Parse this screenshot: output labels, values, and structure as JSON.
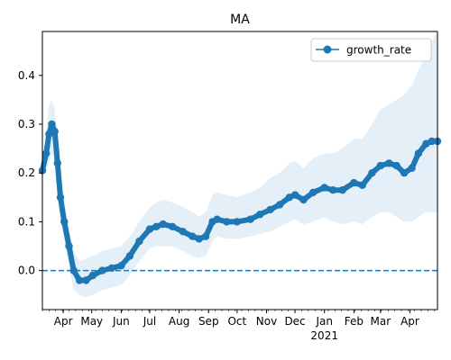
{
  "chart_data": {
    "type": "line",
    "title": "MA",
    "xlabel": "",
    "ylabel": "",
    "x_start": "2020-03-10",
    "x_end": "2021-04-30",
    "ylim": [
      -0.08,
      0.49
    ],
    "yticks": [
      0.0,
      0.1,
      0.2,
      0.3,
      0.4
    ],
    "ytick_labels": [
      "0.0",
      "0.1",
      "0.2",
      "0.3",
      "0.4"
    ],
    "xticks": [
      {
        "date": "2020-04-01",
        "label": "Apr"
      },
      {
        "date": "2020-05-01",
        "label": "May"
      },
      {
        "date": "2020-06-01",
        "label": "Jun"
      },
      {
        "date": "2020-07-01",
        "label": "Jul"
      },
      {
        "date": "2020-08-01",
        "label": "Aug"
      },
      {
        "date": "2020-09-01",
        "label": "Sep"
      },
      {
        "date": "2020-10-01",
        "label": "Oct"
      },
      {
        "date": "2020-11-01",
        "label": "Nov"
      },
      {
        "date": "2020-12-01",
        "label": "Dec"
      },
      {
        "date": "2021-01-01",
        "label": "Jan"
      },
      {
        "date": "2021-02-01",
        "label": "Feb"
      },
      {
        "date": "2021-03-01",
        "label": "Mar"
      },
      {
        "date": "2021-04-01",
        "label": "Apr"
      }
    ],
    "year_label": "2021",
    "hline": {
      "y": 0.0,
      "style": "dashed",
      "color": "#1f77b4"
    },
    "legend": {
      "position": "top-right",
      "entries": [
        "growth_rate"
      ]
    },
    "grid": false,
    "series": [
      {
        "name": "growth_rate",
        "color": "#1f77b4",
        "marker": "circle",
        "band_color": "#c6dbef",
        "points": [
          [
            "2020-03-10",
            0.205,
            0.2,
            0.21
          ],
          [
            "2020-03-14",
            0.24,
            0.21,
            0.29
          ],
          [
            "2020-03-17",
            0.28,
            0.22,
            0.34
          ],
          [
            "2020-03-20",
            0.3,
            0.24,
            0.35
          ],
          [
            "2020-03-23",
            0.285,
            0.22,
            0.33
          ],
          [
            "2020-03-26",
            0.22,
            0.16,
            0.27
          ],
          [
            "2020-03-29",
            0.15,
            0.1,
            0.2
          ],
          [
            "2020-04-02",
            0.1,
            0.06,
            0.14
          ],
          [
            "2020-04-07",
            0.05,
            0.01,
            0.09
          ],
          [
            "2020-04-12",
            0.0,
            -0.04,
            0.04
          ],
          [
            "2020-04-18",
            -0.02,
            -0.05,
            0.02
          ],
          [
            "2020-04-25",
            -0.02,
            -0.055,
            0.025
          ],
          [
            "2020-05-02",
            -0.01,
            -0.05,
            0.03
          ],
          [
            "2020-05-12",
            0.0,
            -0.04,
            0.04
          ],
          [
            "2020-05-22",
            0.005,
            -0.035,
            0.045
          ],
          [
            "2020-06-01",
            0.01,
            -0.03,
            0.05
          ],
          [
            "2020-06-10",
            0.03,
            -0.01,
            0.07
          ],
          [
            "2020-06-20",
            0.06,
            0.02,
            0.1
          ],
          [
            "2020-07-01",
            0.085,
            0.045,
            0.13
          ],
          [
            "2020-07-08",
            0.09,
            0.05,
            0.14
          ],
          [
            "2020-07-15",
            0.095,
            0.05,
            0.145
          ],
          [
            "2020-07-25",
            0.09,
            0.05,
            0.14
          ],
          [
            "2020-08-05",
            0.08,
            0.04,
            0.13
          ],
          [
            "2020-08-15",
            0.07,
            0.03,
            0.12
          ],
          [
            "2020-08-22",
            0.065,
            0.025,
            0.11
          ],
          [
            "2020-08-29",
            0.07,
            0.03,
            0.12
          ],
          [
            "2020-09-05",
            0.1,
            0.06,
            0.155
          ],
          [
            "2020-09-10",
            0.105,
            0.07,
            0.16
          ],
          [
            "2020-09-20",
            0.1,
            0.065,
            0.155
          ],
          [
            "2020-10-01",
            0.1,
            0.065,
            0.15
          ],
          [
            "2020-10-15",
            0.105,
            0.07,
            0.16
          ],
          [
            "2020-10-25",
            0.115,
            0.075,
            0.17
          ],
          [
            "2020-11-05",
            0.125,
            0.08,
            0.19
          ],
          [
            "2020-11-15",
            0.135,
            0.09,
            0.2
          ],
          [
            "2020-11-25",
            0.15,
            0.1,
            0.22
          ],
          [
            "2020-12-01",
            0.155,
            0.105,
            0.225
          ],
          [
            "2020-12-10",
            0.145,
            0.095,
            0.21
          ],
          [
            "2020-12-20",
            0.16,
            0.1,
            0.23
          ],
          [
            "2021-01-01",
            0.17,
            0.11,
            0.24
          ],
          [
            "2021-01-10",
            0.165,
            0.1,
            0.24
          ],
          [
            "2021-01-20",
            0.165,
            0.095,
            0.25
          ],
          [
            "2021-02-01",
            0.18,
            0.1,
            0.27
          ],
          [
            "2021-02-10",
            0.175,
            0.095,
            0.27
          ],
          [
            "2021-02-20",
            0.2,
            0.11,
            0.3
          ],
          [
            "2021-03-01",
            0.215,
            0.12,
            0.33
          ],
          [
            "2021-03-10",
            0.22,
            0.12,
            0.34
          ],
          [
            "2021-03-18",
            0.215,
            0.11,
            0.35
          ],
          [
            "2021-03-26",
            0.2,
            0.1,
            0.36
          ],
          [
            "2021-04-03",
            0.21,
            0.1,
            0.38
          ],
          [
            "2021-04-10",
            0.24,
            0.11,
            0.41
          ],
          [
            "2021-04-18",
            0.26,
            0.12,
            0.44
          ],
          [
            "2021-04-24",
            0.265,
            0.12,
            0.47
          ],
          [
            "2021-04-30",
            0.265,
            0.12,
            0.49
          ]
        ]
      }
    ]
  }
}
